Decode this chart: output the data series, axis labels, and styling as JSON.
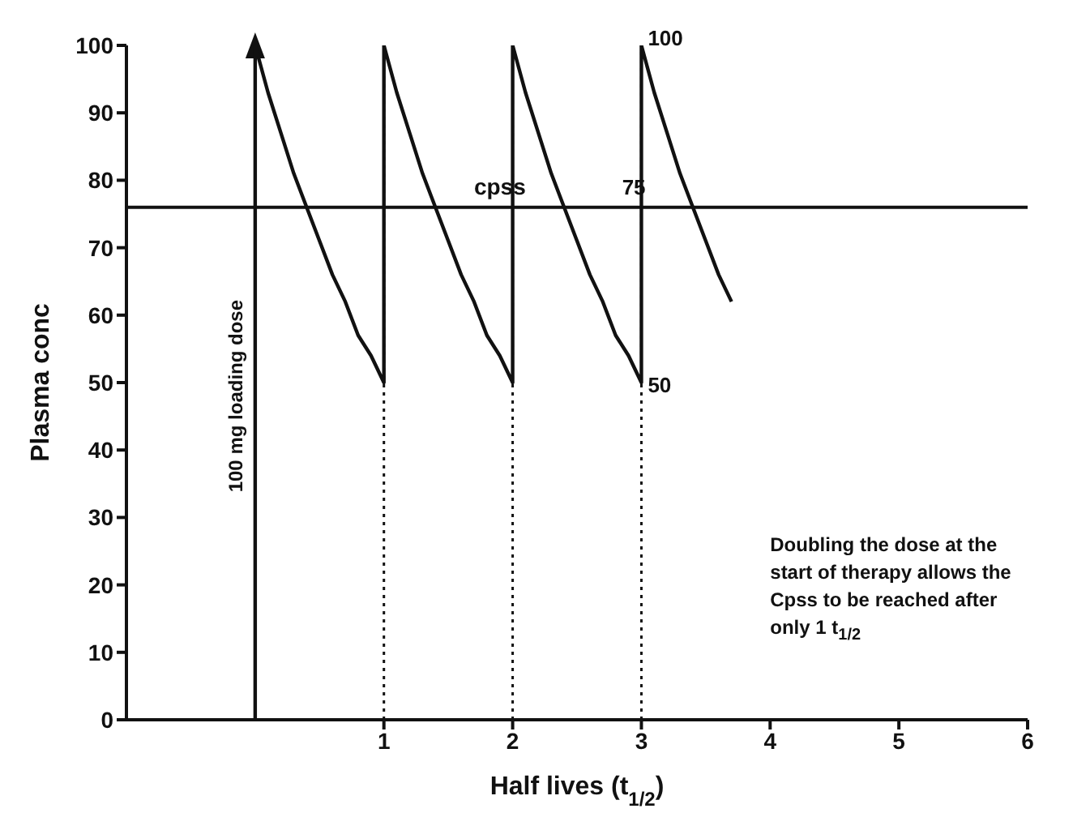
{
  "chart_data": {
    "type": "line",
    "xlabel": "Half lives (t$_{1/2}$)",
    "ylabel": "Plasma conc",
    "series": [
      {
        "color": "#111111",
        "x": [
          0,
          0,
          0.1,
          0.2,
          0.3,
          0.4,
          0.5,
          0.6,
          0.7,
          0.8,
          0.9,
          1,
          1,
          1.1,
          1.2,
          1.3,
          1.4,
          1.5,
          1.6,
          1.7,
          1.8,
          1.9,
          2,
          2,
          2.1,
          2.2,
          2.3,
          2.4,
          2.5,
          2.6,
          2.7,
          2.8,
          2.9,
          3,
          3,
          3.1,
          3.2,
          3.3,
          3.4,
          3.5,
          3.6,
          3.7
        ],
        "values": [
          0,
          100,
          93,
          87,
          81,
          76,
          71,
          66,
          62,
          57,
          54,
          50,
          100,
          93,
          87,
          81,
          76,
          71,
          66,
          62,
          57,
          54,
          50,
          100,
          93,
          87,
          81,
          76,
          71,
          66,
          62,
          57,
          54,
          50,
          100,
          93,
          87,
          81,
          76,
          71,
          66,
          62
        ]
      }
    ],
    "xlim": [
      -1,
      6
    ],
    "xticks": [
      1,
      2,
      3,
      4,
      5,
      6
    ],
    "ylim": [
      0,
      100
    ],
    "yticks": [
      0,
      10,
      20,
      30,
      40,
      50,
      60,
      70,
      80,
      90,
      100
    ],
    "ref_lines": [
      {
        "axis": "y",
        "value": 76,
        "label": "cpss",
        "color": "#111111"
      },
      {
        "axis": "x",
        "value": 1,
        "label": null,
        "color": "#111111",
        "line_style": "dotted"
      },
      {
        "axis": "x",
        "value": 2,
        "label": null,
        "color": "#111111",
        "line_style": "dotted"
      },
      {
        "axis": "x",
        "value": 3,
        "label": null,
        "color": "#111111",
        "line_style": "dotted"
      }
    ],
    "annotations": [
      {
        "text": "100 mg loading dose",
        "x": 0,
        "y": 48
      },
      {
        "text": "100",
        "x": 3,
        "y": 100
      },
      {
        "text": "50",
        "x": 3,
        "y": 50
      },
      {
        "text": "75",
        "x": 2.8,
        "y": 76
      },
      "Doubling the dose at the start of therapy allows the Cpss to be reached after only 1 t$_{1/2}$"
    ]
  }
}
